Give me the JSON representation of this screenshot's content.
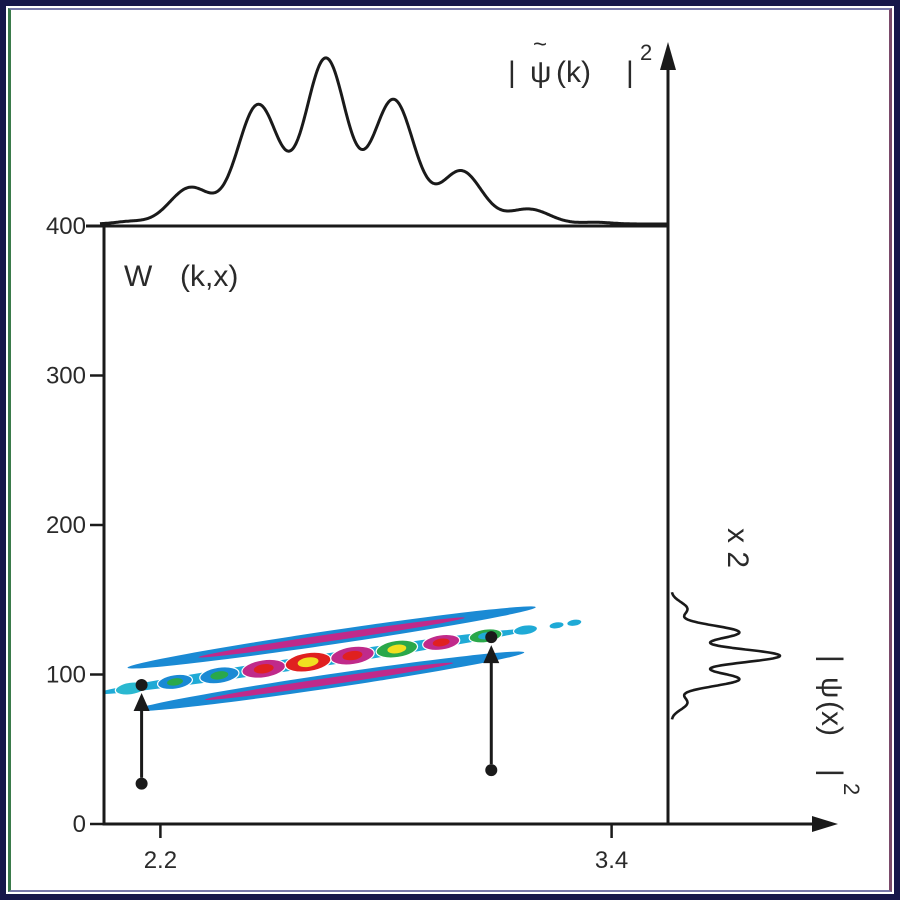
{
  "chart_data": {
    "type": "heatmap",
    "title": "",
    "panel_label": "W",
    "panel_label_args": "(k,x)",
    "xlabel": "",
    "ylabel": "",
    "xlim": [
      2.05,
      3.55
    ],
    "ylim": [
      0,
      400
    ],
    "x_ticks": [
      "2.2",
      "3.4"
    ],
    "y_ticks": [
      "0",
      "100",
      "200",
      "300",
      "400"
    ],
    "top_marginal": {
      "label_prefix": "|",
      "label_symbol": "ψ",
      "label_arg": "(k)",
      "label_suffix": "|",
      "label_power": "2",
      "peaks": [
        {
          "k": 2.28,
          "height": 0.22
        },
        {
          "k": 2.46,
          "height": 0.72
        },
        {
          "k": 2.64,
          "height": 1.0
        },
        {
          "k": 2.82,
          "height": 0.75
        },
        {
          "k": 3.0,
          "height": 0.32
        },
        {
          "k": 3.18,
          "height": 0.09
        }
      ]
    },
    "right_marginal": {
      "scale_note": "x 2",
      "label_prefix": "|",
      "label_symbol": "ψ",
      "label_arg": "(x)",
      "label_suffix": "|",
      "label_power": "2",
      "x_range": [
        70,
        155
      ]
    },
    "ridge": {
      "k_start": 2.05,
      "x_start": 88,
      "k_end": 3.23,
      "x_end": 132
    },
    "markers": [
      {
        "k": 2.15,
        "x_from": 27,
        "x_to": 93
      },
      {
        "k": 3.08,
        "x_from": 36,
        "x_to": 125
      }
    ],
    "colors": {
      "outer_lobe": "#1a8ad4",
      "middle_lobe": "#c02a8a",
      "ridge_base": "#1faad6",
      "green": "#2aa84a",
      "yellow": "#f0e020",
      "red": "#e02020",
      "line": "#1a1a1a"
    }
  }
}
